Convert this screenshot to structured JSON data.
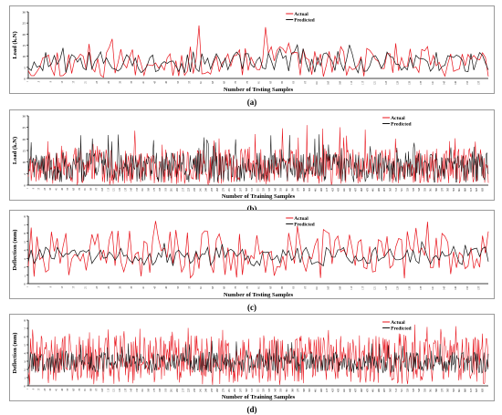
{
  "colors": {
    "actual": "#e8121a",
    "predicted": "#111111",
    "frame": "#9a9a9a"
  },
  "panels": [
    {
      "caption": "(a)",
      "chart_data": {
        "type": "line",
        "xlabel": "Number of Testing Samples",
        "ylabel": "Load (k.N)",
        "legend": "top-center",
        "n_samples": 160,
        "ylim": [
          0,
          30
        ],
        "yticks": [
          0,
          5,
          10,
          15,
          20,
          25,
          30
        ],
        "grid": false,
        "series": [
          {
            "name": "Actual",
            "key": "actual",
            "seed": 11,
            "mean": 6.5,
            "amp": 9,
            "peak": 24
          },
          {
            "name": "Predicted",
            "key": "predicted",
            "seed": 12,
            "mean": 6.8,
            "amp": 6,
            "peak": 16
          }
        ]
      }
    },
    {
      "caption": "(b)",
      "chart_data": {
        "type": "line",
        "xlabel": "Number of Training Samples",
        "ylabel": "Load (k.N)",
        "legend": "top-right",
        "n_samples": 640,
        "ylim": [
          0,
          30
        ],
        "yticks": [
          0,
          5,
          10,
          15,
          20,
          25,
          30
        ],
        "grid": false,
        "series": [
          {
            "name": "Actual",
            "key": "actual",
            "seed": 21,
            "mean": 7,
            "amp": 10,
            "peak": 26
          },
          {
            "name": "Predicted",
            "key": "predicted",
            "seed": 22,
            "mean": 7,
            "amp": 8,
            "peak": 22
          }
        ]
      }
    },
    {
      "caption": "(c)",
      "chart_data": {
        "type": "line",
        "xlabel": "Number of Testing Samples",
        "ylabel": "Deflection (mm)",
        "legend": "top-center",
        "n_samples": 160,
        "ylim": [
          0,
          8
        ],
        "yticks": [
          0,
          1,
          2,
          3,
          4,
          5,
          6,
          7,
          8
        ],
        "grid": false,
        "series": [
          {
            "name": "Actual",
            "key": "actual",
            "seed": 31,
            "mean": 3.2,
            "amp": 3.6,
            "peak": 7.5
          },
          {
            "name": "Predicted",
            "key": "predicted",
            "seed": 32,
            "mean": 3.1,
            "amp": 1.4,
            "peak": 5
          }
        ]
      }
    },
    {
      "caption": "(d)",
      "chart_data": {
        "type": "line",
        "xlabel": "Number of Training Samples",
        "ylabel": "Deflection (mm)",
        "legend": "top-right",
        "n_samples": 640,
        "ylim": [
          0,
          8
        ],
        "yticks": [
          0,
          1,
          2,
          3,
          4,
          5,
          6,
          7,
          8
        ],
        "grid": false,
        "series": [
          {
            "name": "Actual",
            "key": "actual",
            "seed": 41,
            "mean": 2.8,
            "amp": 3.8,
            "peak": 7.5
          },
          {
            "name": "Predicted",
            "key": "predicted",
            "seed": 42,
            "mean": 2.7,
            "amp": 1.6,
            "peak": 5.5
          }
        ]
      }
    }
  ]
}
